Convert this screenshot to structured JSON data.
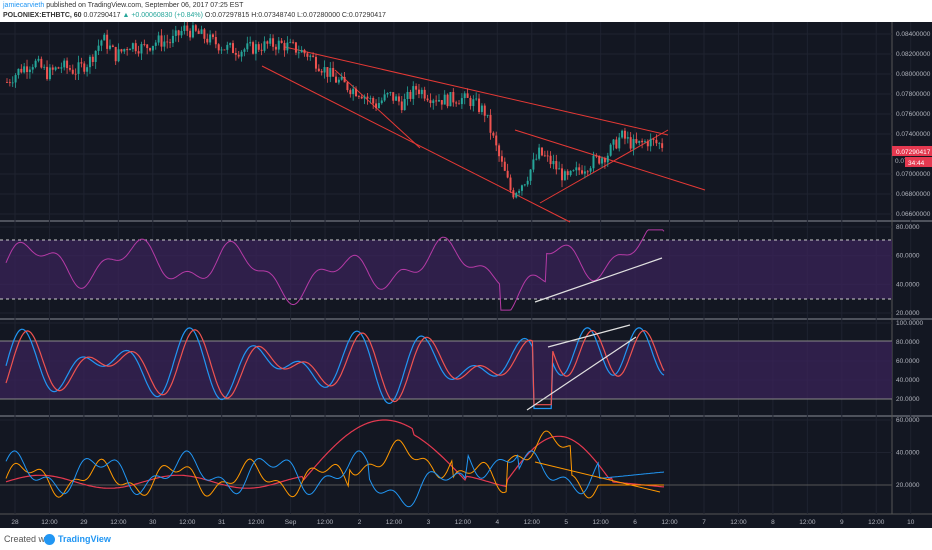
{
  "header": {
    "user": "jamiecarvieth",
    "published": "published on TradingView.com, September 06, 2017 07:25 EST",
    "symbol": "POLONIEX:ETHBTC, 60",
    "price": "0.07290417",
    "change": "▲ +0.00060830 (+0.84%)",
    "ohlc": "O:0.07297815 H:0.07348740 L:0.07280000 C:0.07290417"
  },
  "price_axis": {
    "ticks": [
      "0.08400000",
      "0.08200000",
      "0.08000000",
      "0.07800000",
      "0.07600000",
      "0.07400000",
      "0.07200000",
      "0.07000000",
      "0.06800000",
      "0.06600000"
    ],
    "current_price": "0.07290417",
    "countdown": "34:44",
    "partial_label": "0.072"
  },
  "rsi_axis": {
    "ticks": [
      "80.0000",
      "60.0000",
      "40.0000",
      "20.0000"
    ]
  },
  "stoch_axis": {
    "ticks": [
      "100.0000",
      "80.0000",
      "60.0000",
      "40.0000",
      "20.0000"
    ]
  },
  "dmi_axis": {
    "ticks": [
      "60.0000",
      "40.0000",
      "20.0000"
    ]
  },
  "time_axis": {
    "labels": [
      "28",
      "12:00",
      "29",
      "12:00",
      "30",
      "12:00",
      "31",
      "12:00",
      "Sep",
      "12:00",
      "2",
      "12:00",
      "3",
      "12:00",
      "4",
      "12:00",
      "5",
      "12:00",
      "6",
      "12:00",
      "7",
      "12:00",
      "8",
      "12:00",
      "9",
      "12:00",
      "10"
    ]
  },
  "colors": {
    "background": "#131722",
    "candle_up": "#26a69a",
    "candle_down": "#ef5350",
    "trendline": "#e53935",
    "band": "#4a2a6e",
    "divergence": "#e0e0e0"
  },
  "footer": {
    "created": "Created with",
    "brand": "TradingView",
    "logo_icon": "tradingview-logo-icon"
  },
  "chart_data": {
    "type": "candlestick",
    "symbol": "POLONIEX:ETHBTC, 60",
    "ylim": [
      0.0655,
      0.0852
    ],
    "x": [
      "28",
      "12:00",
      "29",
      "12:00",
      "30",
      "12:00",
      "31",
      "12:00",
      "Sep",
      "12:00",
      "2",
      "12:00",
      "3",
      "12:00",
      "4",
      "12:00",
      "5",
      "12:00",
      "6",
      "12:00"
    ],
    "close_path": [
      0.0792,
      0.0805,
      0.0812,
      0.08,
      0.0808,
      0.0803,
      0.0812,
      0.0836,
      0.0818,
      0.083,
      0.0826,
      0.0833,
      0.0832,
      0.0845,
      0.084,
      0.0833,
      0.0826,
      0.0824,
      0.0826,
      0.0829,
      0.083,
      0.0826,
      0.082,
      0.0808,
      0.0795,
      0.0787,
      0.0781,
      0.0769,
      0.0779,
      0.077,
      0.0786,
      0.0778,
      0.0774,
      0.0776,
      0.0773,
      0.0762,
      0.0719,
      0.068,
      0.0695,
      0.0721,
      0.071,
      0.0694,
      0.0705,
      0.0713,
      0.072,
      0.0738,
      0.0728,
      0.0733,
      0.0729
    ],
    "rsi": {
      "ylim": [
        20,
        80
      ],
      "band": [
        30,
        70
      ]
    },
    "stoch": {
      "ylim": [
        0,
        100
      ],
      "band": [
        20,
        80
      ]
    },
    "dmi": {
      "ylim": [
        0,
        70
      ]
    }
  }
}
